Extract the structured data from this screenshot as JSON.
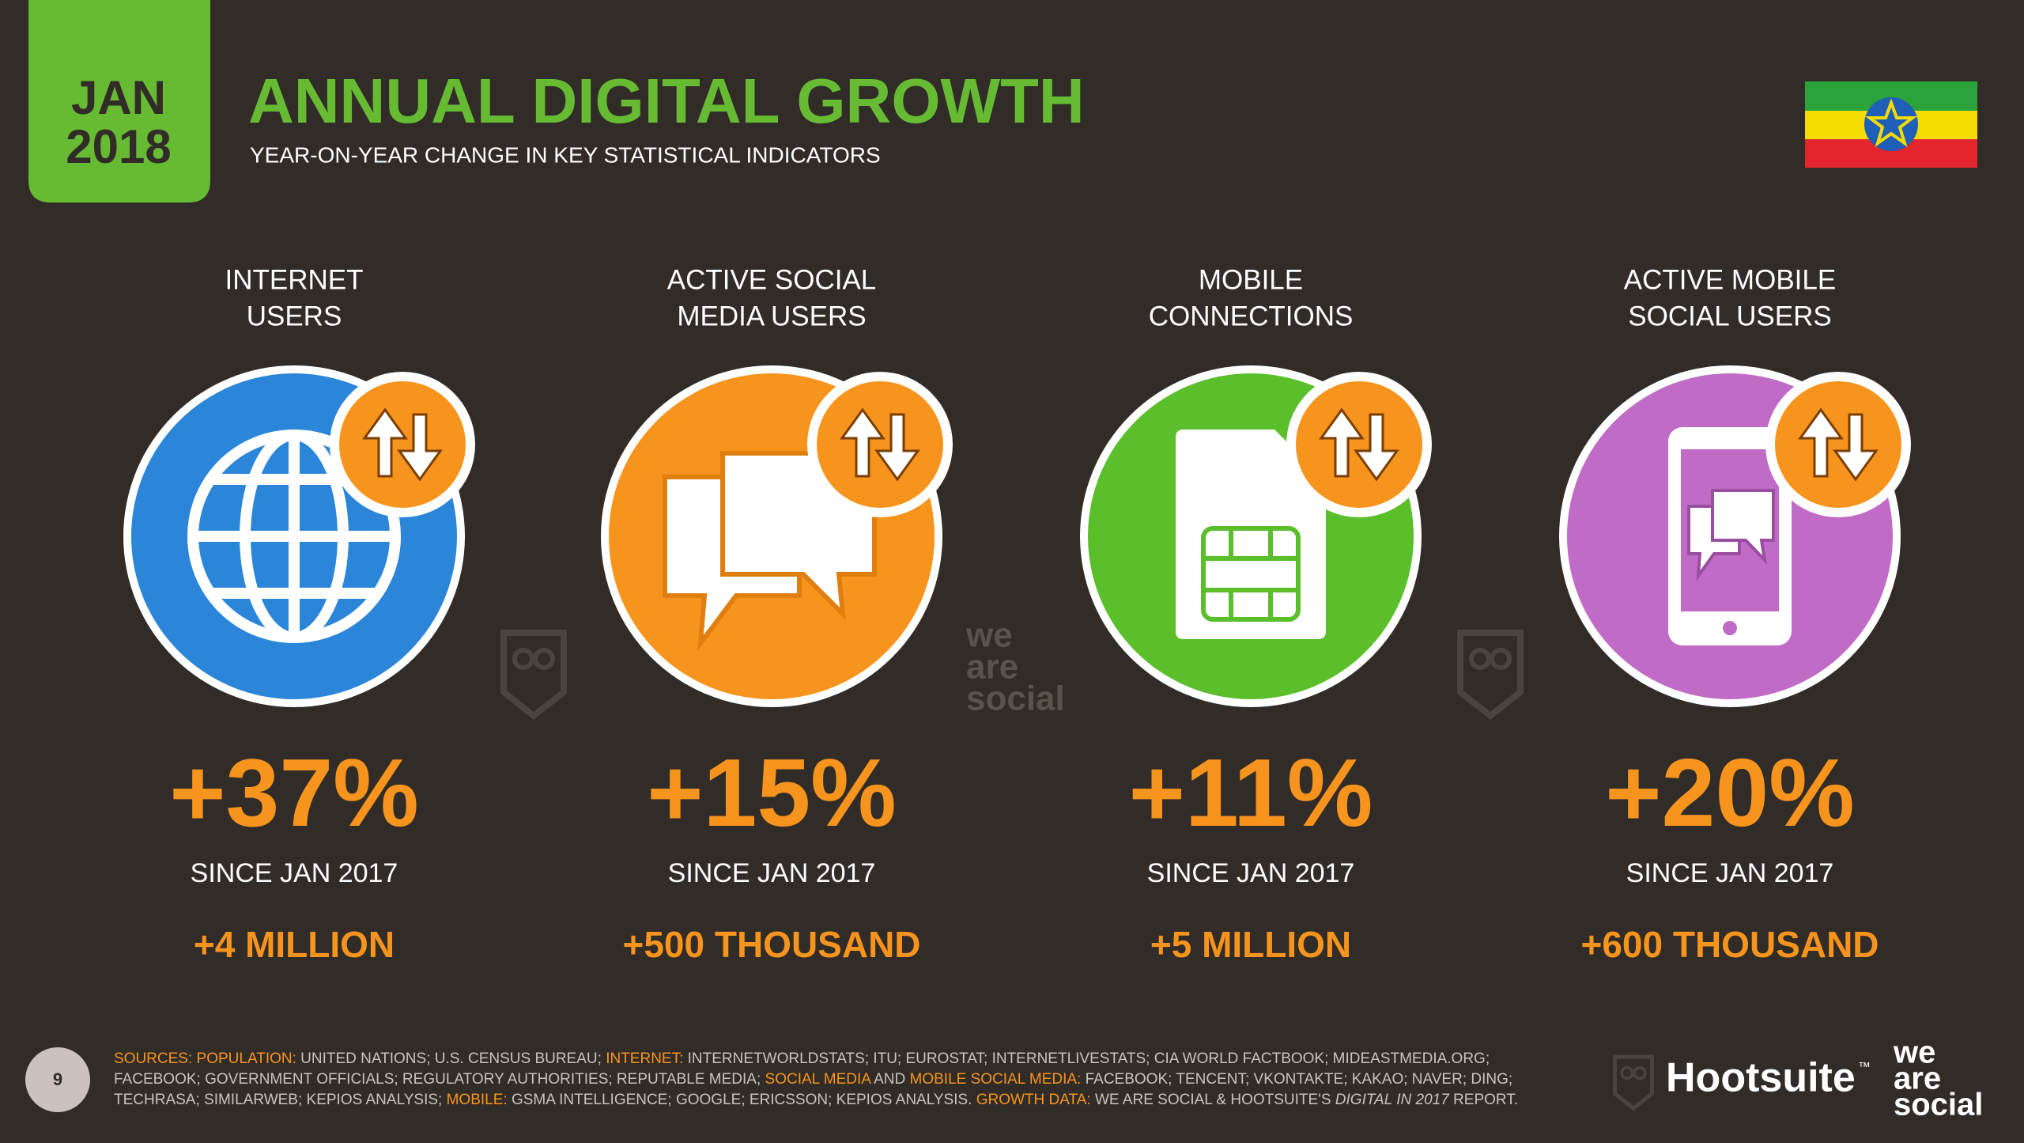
{
  "header": {
    "month": "JAN",
    "year": "2018",
    "title": "ANNUAL DIGITAL GROWTH",
    "subtitle": "YEAR-ON-YEAR CHANGE IN KEY STATISTICAL INDICATORS"
  },
  "metrics": [
    {
      "label_lines": [
        "INTERNET",
        "USERS"
      ],
      "change": "+37%",
      "since": "SINCE JAN 2017",
      "absolute": "+4 MILLION",
      "color": "#2b86d9"
    },
    {
      "label_lines": [
        "ACTIVE SOCIAL",
        "MEDIA USERS"
      ],
      "change": "+15%",
      "since": "SINCE JAN 2017",
      "absolute": "+500 THOUSAND",
      "color": "#f7941d"
    },
    {
      "label_lines": [
        "MOBILE",
        "CONNECTIONS"
      ],
      "change": "+11%",
      "since": "SINCE JAN 2017",
      "absolute": "+5 MILLION",
      "color": "#5bbf2c"
    },
    {
      "label_lines": [
        "ACTIVE MOBILE",
        "SOCIAL USERS"
      ],
      "change": "+20%",
      "since": "SINCE JAN 2017",
      "absolute": "+600 THOUSAND",
      "color": "#c06cc6"
    }
  ],
  "footer": {
    "page_number": 9,
    "sources": [
      {
        "text": "SOURCES: ",
        "style": "highlight"
      },
      {
        "text": "POPULATION: ",
        "style": "highlight"
      },
      {
        "text": "UNITED NATIONS; U.S. CENSUS BUREAU; ",
        "style": "plain"
      },
      {
        "text": "INTERNET: ",
        "style": "highlight"
      },
      {
        "text": "INTERNETWORLDSTATS; ITU; EUROSTAT; INTERNETLIVESTATS; CIA WORLD FACTBOOK; MIDEASTMEDIA.ORG; FACEBOOK; GOVERNMENT OFFICIALS; REGULATORY AUTHORITIES; REPUTABLE MEDIA; ",
        "style": "plain"
      },
      {
        "text": "SOCIAL MEDIA",
        "style": "highlight"
      },
      {
        "text": " AND ",
        "style": "plain"
      },
      {
        "text": "MOBILE SOCIAL MEDIA: ",
        "style": "highlight"
      },
      {
        "text": "FACEBOOK; TENCENT; VKONTAKTE; KAKAO; NAVER; DING; TECHRASA; SIMILARWEB; KEPIOS ANALYSIS; ",
        "style": "plain"
      },
      {
        "text": "MOBILE: ",
        "style": "highlight"
      },
      {
        "text": "GSMA INTELLIGENCE; GOOGLE; ERICSSON; KEPIOS ANALYSIS. ",
        "style": "plain"
      },
      {
        "text": "GROWTH DATA: ",
        "style": "highlight"
      },
      {
        "text": "WE ARE SOCIAL & HOOTSUITE'S ",
        "style": "plain"
      },
      {
        "text": "DIGITAL IN 2017",
        "style": "italic"
      },
      {
        "text": " REPORT.",
        "style": "plain"
      }
    ],
    "brand": "Hootsuite",
    "trademark": "™",
    "agency_lines": [
      "we",
      "are",
      "social"
    ]
  }
}
